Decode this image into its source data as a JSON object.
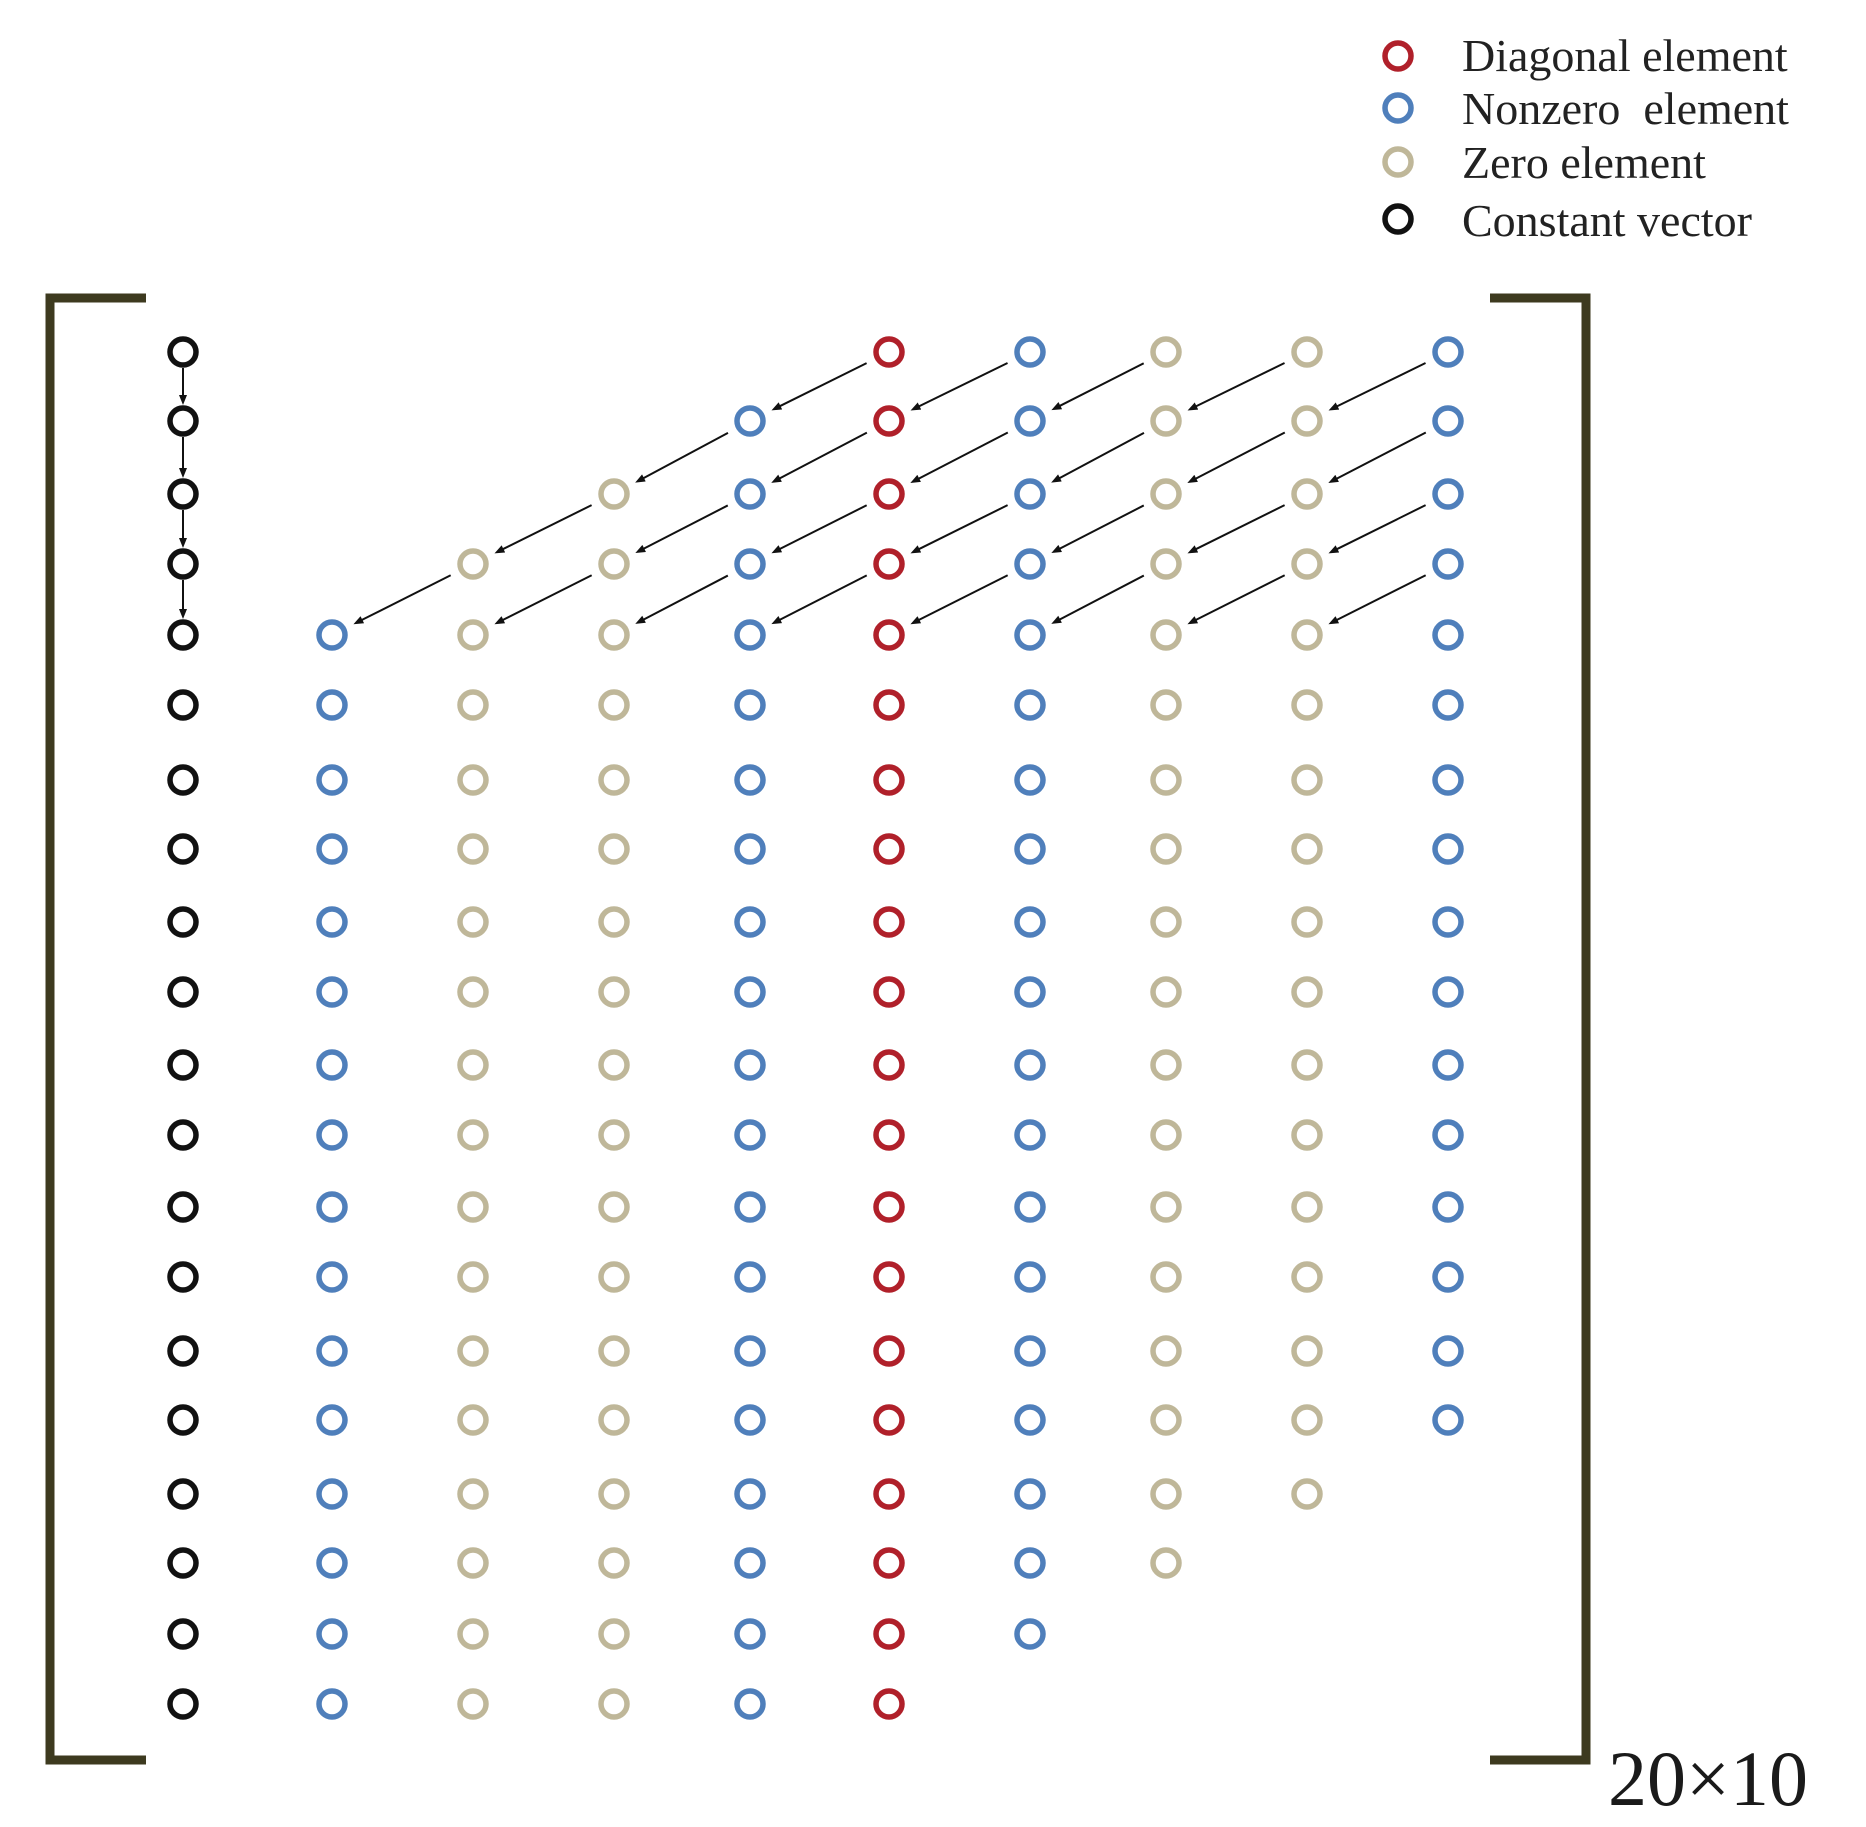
{
  "legend": {
    "items": [
      {
        "key": "diagonal",
        "label": "Diagonal element",
        "color": "#b0202a"
      },
      {
        "key": "nonzero",
        "label": "Nonzero  element",
        "color": "#4f7fbb"
      },
      {
        "key": "zero",
        "label": "Zero element",
        "color": "#bfb799"
      },
      {
        "key": "constant",
        "label": "Constant vector",
        "color": "#111111"
      }
    ]
  },
  "matrix": {
    "rows": 20,
    "columns": 9,
    "dimension_label": "20×10",
    "bracket_color": "#3d3a1f",
    "arrow_color": "#111111",
    "constant_vector_color": "#111111",
    "column_types": [
      "nonzero",
      "zero",
      "zero",
      "nonzero",
      "diagonal",
      "nonzero",
      "zero",
      "zero",
      "nonzero"
    ],
    "column_row_ranges": [
      [
        5,
        20
      ],
      [
        4,
        20
      ],
      [
        3,
        20
      ],
      [
        2,
        20
      ],
      [
        1,
        20
      ],
      [
        1,
        19
      ],
      [
        1,
        18
      ],
      [
        1,
        17
      ],
      [
        1,
        16
      ]
    ],
    "constant_vector_shift_arrows": [
      [
        1,
        2
      ],
      [
        2,
        3
      ],
      [
        3,
        4
      ],
      [
        4,
        5
      ]
    ]
  }
}
